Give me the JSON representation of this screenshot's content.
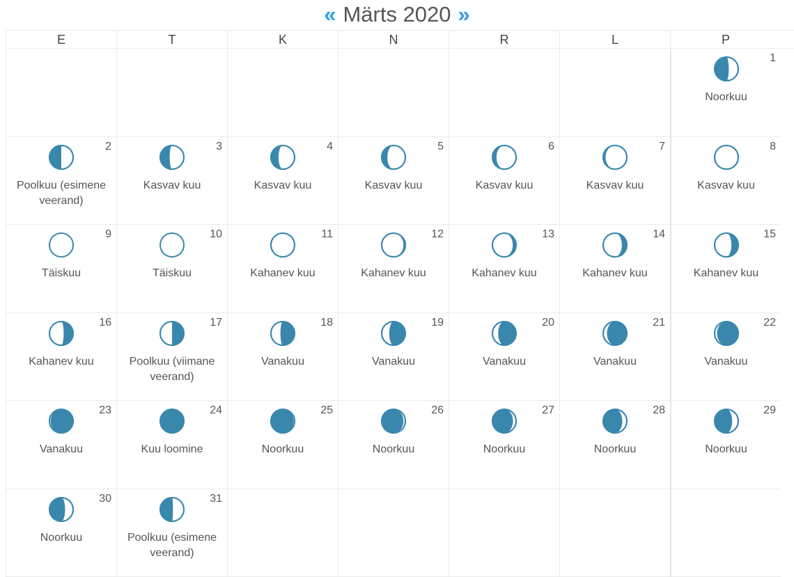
{
  "header": {
    "prev": "«",
    "title": "Märts 2020",
    "next": "»"
  },
  "weekdays": [
    "E",
    "T",
    "K",
    "N",
    "R",
    "L",
    "P"
  ],
  "leading_blanks": 6,
  "colors": {
    "moon": "#3a87ad",
    "nav": "#2e9fe6"
  },
  "days": [
    {
      "day": "1",
      "label": "Noorkuu",
      "lit": 0.4,
      "waxing": true
    },
    {
      "day": "2",
      "label": "Poolkuu (esimene veerand)",
      "lit": 0.5,
      "waxing": true
    },
    {
      "day": "3",
      "label": "Kasvav kuu",
      "lit": 0.6,
      "waxing": true
    },
    {
      "day": "4",
      "label": "Kasvav kuu",
      "lit": 0.68,
      "waxing": true
    },
    {
      "day": "5",
      "label": "Kasvav kuu",
      "lit": 0.76,
      "waxing": true
    },
    {
      "day": "6",
      "label": "Kasvav kuu",
      "lit": 0.83,
      "waxing": true
    },
    {
      "day": "7",
      "label": "Kasvav kuu",
      "lit": 0.9,
      "waxing": true
    },
    {
      "day": "8",
      "label": "Kasvav kuu",
      "lit": 0.97,
      "waxing": true
    },
    {
      "day": "9",
      "label": "Täiskuu",
      "lit": 1,
      "waxing": true
    },
    {
      "day": "10",
      "label": "Täiskuu",
      "lit": 1,
      "waxing": false
    },
    {
      "day": "11",
      "label": "Kahanev kuu",
      "lit": 0.97,
      "waxing": false
    },
    {
      "day": "12",
      "label": "Kahanev kuu",
      "lit": 0.92,
      "waxing": false
    },
    {
      "day": "13",
      "label": "Kahanev kuu",
      "lit": 0.86,
      "waxing": false
    },
    {
      "day": "14",
      "label": "Kahanev kuu",
      "lit": 0.79,
      "waxing": false
    },
    {
      "day": "15",
      "label": "Kahanev kuu",
      "lit": 0.71,
      "waxing": false
    },
    {
      "day": "16",
      "label": "Kahanev kuu",
      "lit": 0.6,
      "waxing": false
    },
    {
      "day": "17",
      "label": "Poolkuu (viimane veerand)",
      "lit": 0.5,
      "waxing": false
    },
    {
      "day": "18",
      "label": "Vanakuu",
      "lit": 0.4,
      "waxing": false
    },
    {
      "day": "19",
      "label": "Vanakuu",
      "lit": 0.32,
      "waxing": false
    },
    {
      "day": "20",
      "label": "Vanakuu",
      "lit": 0.24,
      "waxing": false
    },
    {
      "day": "21",
      "label": "Vanakuu",
      "lit": 0.16,
      "waxing": false
    },
    {
      "day": "22",
      "label": "Vanakuu",
      "lit": 0.1,
      "waxing": false
    },
    {
      "day": "23",
      "label": "Vanakuu",
      "lit": 0.05,
      "waxing": false
    },
    {
      "day": "24",
      "label": "Kuu loomine",
      "lit": 0,
      "waxing": true
    },
    {
      "day": "25",
      "label": "Noorkuu",
      "lit": 0.04,
      "waxing": true
    },
    {
      "day": "26",
      "label": "Noorkuu",
      "lit": 0.08,
      "waxing": true
    },
    {
      "day": "27",
      "label": "Noorkuu",
      "lit": 0.13,
      "waxing": true
    },
    {
      "day": "28",
      "label": "Noorkuu",
      "lit": 0.19,
      "waxing": true
    },
    {
      "day": "29",
      "label": "Noorkuu",
      "lit": 0.26,
      "waxing": true
    },
    {
      "day": "30",
      "label": "Noorkuu",
      "lit": 0.34,
      "waxing": true
    },
    {
      "day": "31",
      "label": "Poolkuu (esimene veerand)",
      "lit": 0.46,
      "waxing": true
    }
  ],
  "trailing_blanks": 5
}
